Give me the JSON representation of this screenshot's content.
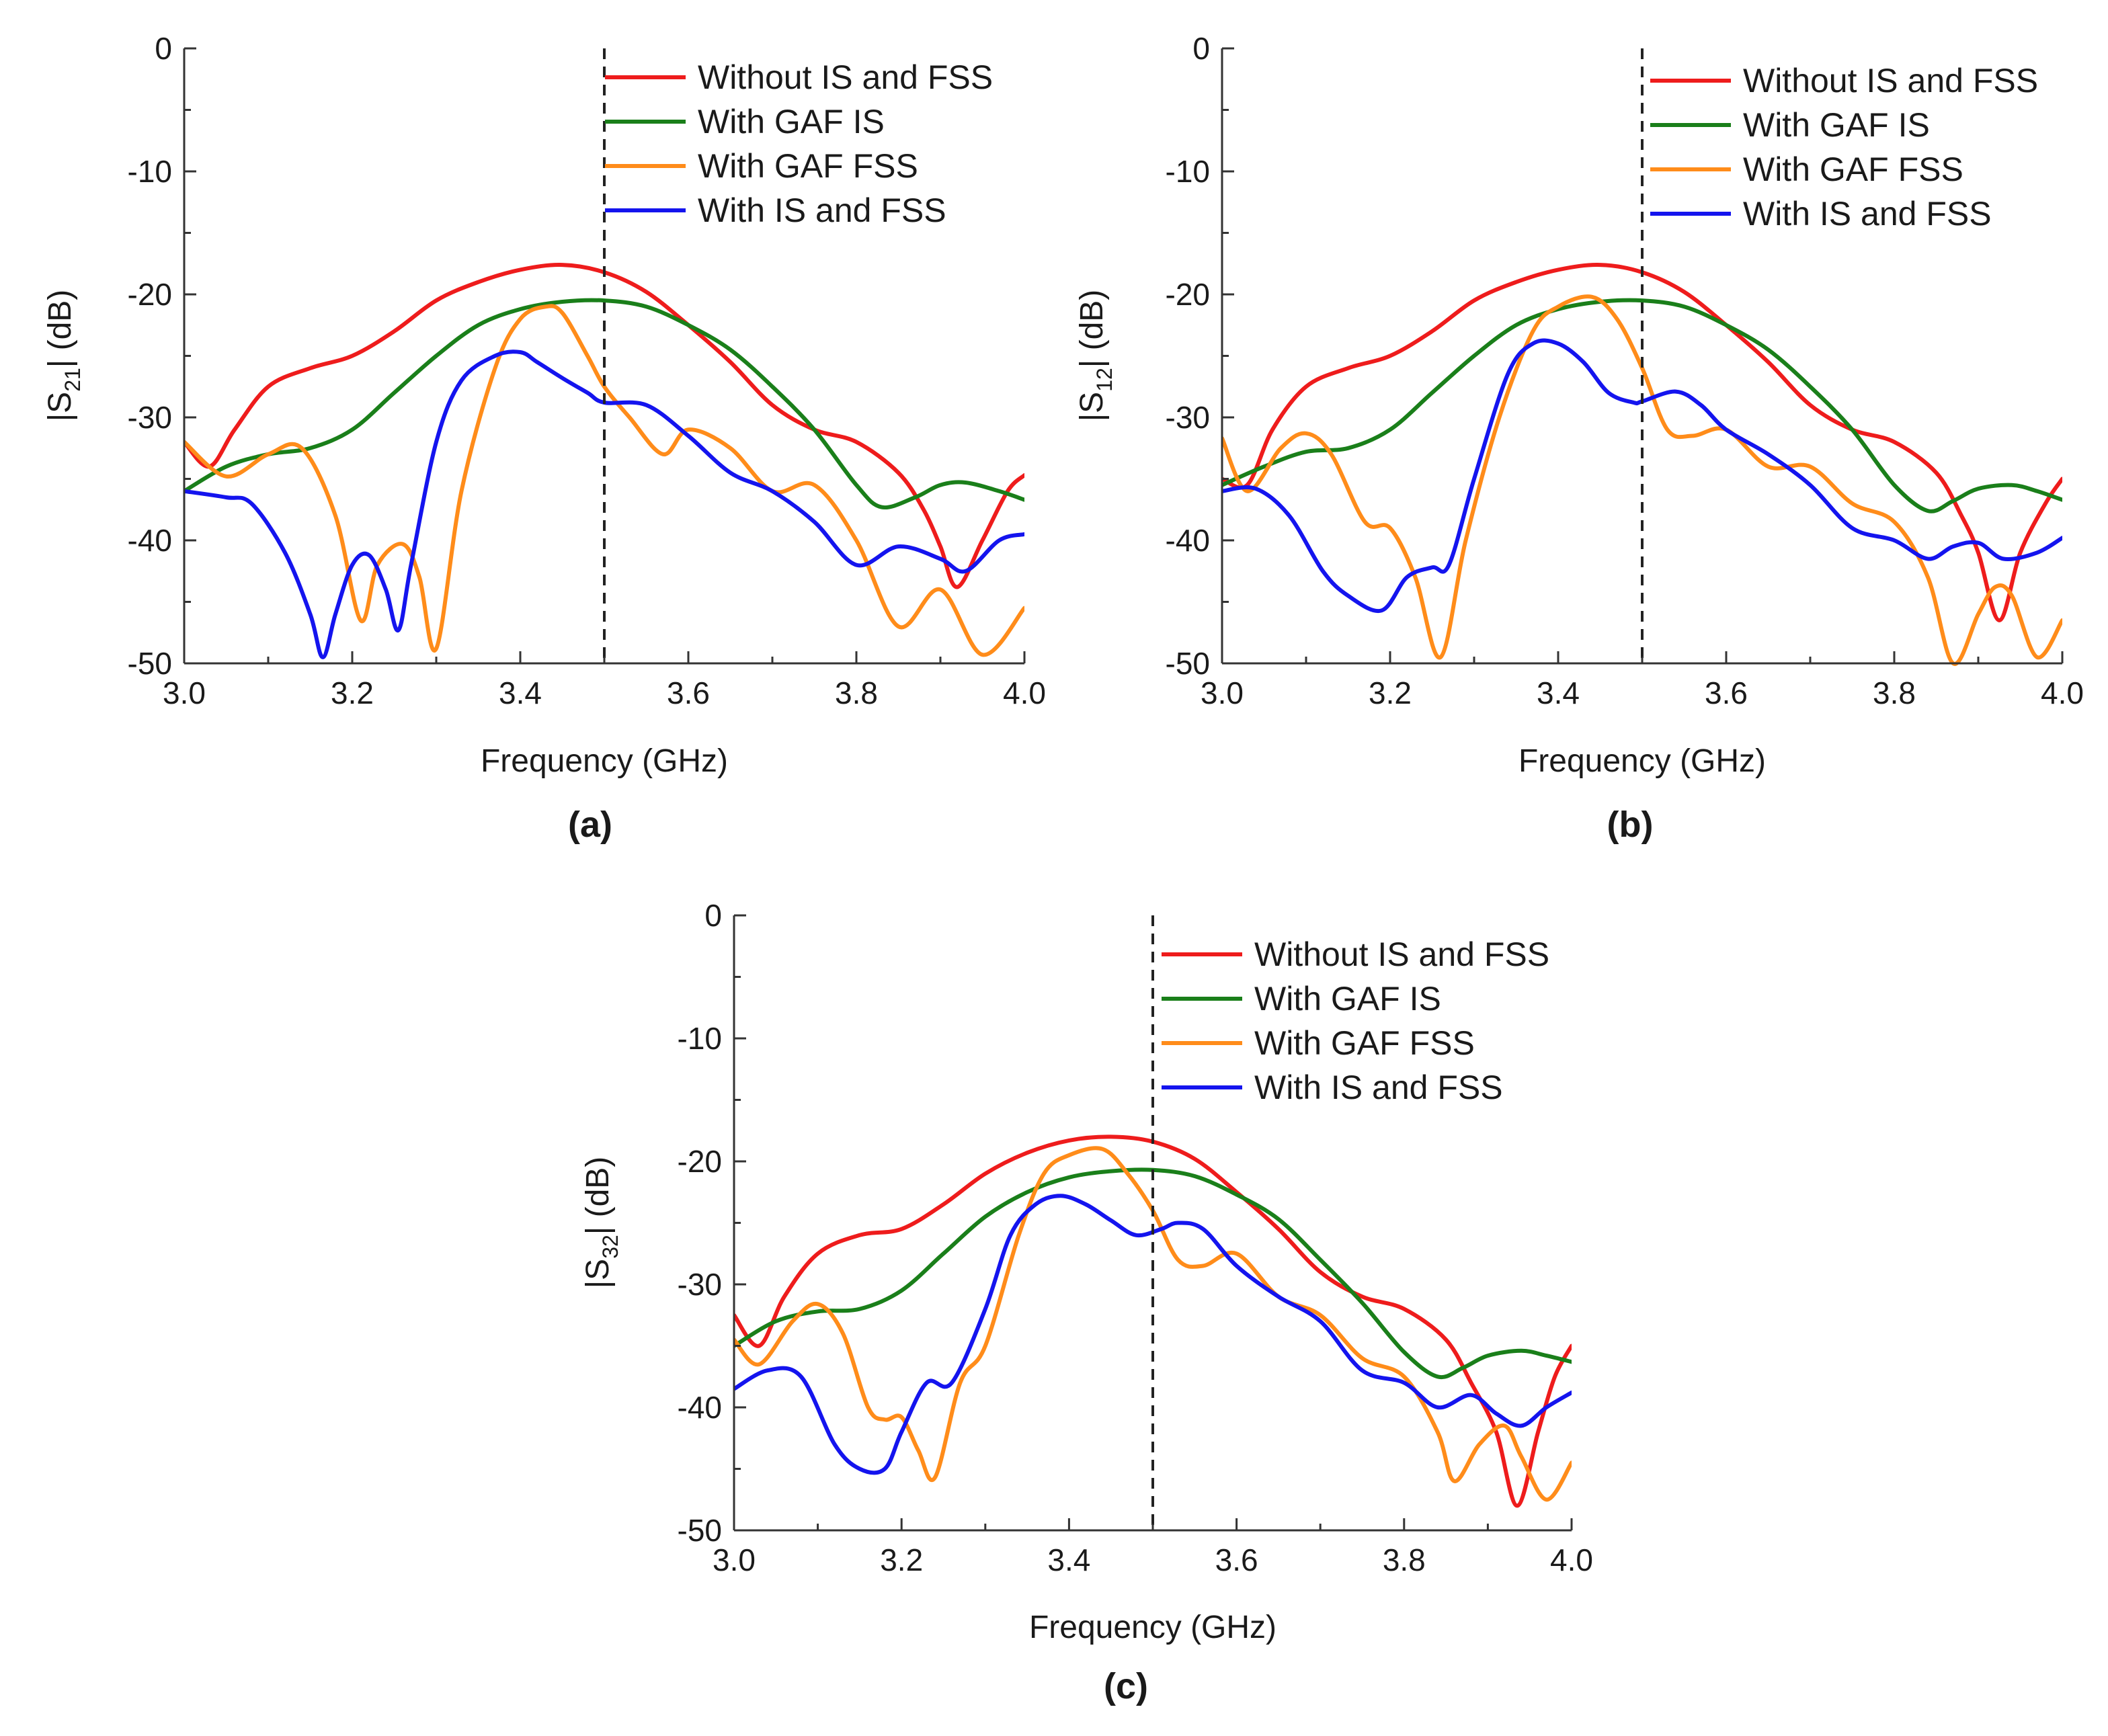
{
  "figure": {
    "legend_entries": [
      "Without IS and FSS",
      "With GAF IS",
      "With GAF FSS",
      "With IS and FSS"
    ],
    "series_colors": [
      "#ee1c1c",
      "#1a7f1a",
      "#ff8c1a",
      "#1414ee"
    ],
    "axis_color": "#333333",
    "marker_color": "#222222"
  },
  "chart_data": [
    {
      "panel": "(a)",
      "type": "line",
      "title": "",
      "xlabel": "Frequency (GHz)",
      "ylabel_prefix": "|S",
      "ylabel_sub": "21",
      "ylabel_suffix": "| (dB)",
      "xlim": [
        3.0,
        4.0
      ],
      "ylim": [
        -50,
        0
      ],
      "xticks": [
        "3.0",
        "3.2",
        "3.4",
        "3.6",
        "3.8",
        "4.0"
      ],
      "yticks": [
        "0",
        "-10",
        "-20",
        "-30",
        "-40",
        "-50"
      ],
      "vline_x": 3.5,
      "legend_position": "top-right",
      "series": [
        {
          "name": "Without IS and FSS",
          "x": [
            3.0,
            3.03,
            3.06,
            3.1,
            3.15,
            3.2,
            3.25,
            3.3,
            3.35,
            3.4,
            3.45,
            3.5,
            3.55,
            3.6,
            3.65,
            3.7,
            3.75,
            3.8,
            3.85,
            3.88,
            3.9,
            3.92,
            3.95,
            3.98,
            4.0
          ],
          "y": [
            -32,
            -34,
            -31,
            -27.5,
            -26,
            -25,
            -23,
            -20.5,
            -19,
            -18,
            -17.6,
            -18.2,
            -19.8,
            -22.5,
            -25.5,
            -29,
            -31,
            -32,
            -34.5,
            -37.5,
            -40.5,
            -43.8,
            -40,
            -36,
            -34.7
          ]
        },
        {
          "name": "With GAF IS",
          "x": [
            3.0,
            3.05,
            3.1,
            3.15,
            3.2,
            3.25,
            3.3,
            3.35,
            3.4,
            3.45,
            3.5,
            3.55,
            3.6,
            3.65,
            3.7,
            3.75,
            3.8,
            3.83,
            3.87,
            3.9,
            3.93,
            3.97,
            4.0
          ],
          "y": [
            -36,
            -34,
            -33,
            -32.5,
            -31,
            -28,
            -25,
            -22.5,
            -21.2,
            -20.6,
            -20.5,
            -21,
            -22.5,
            -24.5,
            -27.5,
            -31,
            -35.5,
            -37.3,
            -36.5,
            -35.5,
            -35.3,
            -36,
            -36.7
          ]
        },
        {
          "name": "With GAF FSS",
          "x": [
            3.0,
            3.05,
            3.1,
            3.14,
            3.18,
            3.21,
            3.23,
            3.26,
            3.28,
            3.3,
            3.33,
            3.37,
            3.4,
            3.43,
            3.45,
            3.48,
            3.5,
            3.53,
            3.57,
            3.6,
            3.65,
            3.7,
            3.75,
            3.8,
            3.85,
            3.9,
            3.95,
            4.0
          ],
          "y": [
            -32,
            -34.8,
            -33,
            -32.5,
            -38,
            -46.5,
            -42,
            -40.3,
            -43,
            -48.8,
            -36,
            -26,
            -22,
            -21,
            -21.5,
            -25,
            -27.5,
            -30,
            -33,
            -31,
            -32.5,
            -36,
            -35.5,
            -40,
            -47,
            -44,
            -49.3,
            -45.5
          ]
        },
        {
          "name": "With IS and FSS",
          "x": [
            3.0,
            3.05,
            3.08,
            3.12,
            3.15,
            3.165,
            3.18,
            3.2,
            3.22,
            3.24,
            3.255,
            3.27,
            3.3,
            3.33,
            3.37,
            3.4,
            3.42,
            3.45,
            3.48,
            3.5,
            3.55,
            3.6,
            3.65,
            3.7,
            3.75,
            3.8,
            3.85,
            3.9,
            3.93,
            3.97,
            4.0
          ],
          "y": [
            -36,
            -36.5,
            -37,
            -41,
            -46,
            -49.5,
            -46,
            -42,
            -41.2,
            -44,
            -47.3,
            -42,
            -32,
            -27,
            -25,
            -24.7,
            -25.5,
            -26.8,
            -28,
            -28.8,
            -29,
            -31.5,
            -34.5,
            -36,
            -38.5,
            -42,
            -40.5,
            -41.5,
            -42.5,
            -40,
            -39.5
          ]
        }
      ]
    },
    {
      "panel": "(b)",
      "type": "line",
      "title": "",
      "xlabel": "Frequency (GHz)",
      "ylabel_prefix": "|S",
      "ylabel_sub": "12",
      "ylabel_suffix": "| (dB)",
      "xlim": [
        3.0,
        4.0
      ],
      "ylim": [
        -50,
        0
      ],
      "xticks": [
        "3.0",
        "3.2",
        "3.4",
        "3.6",
        "3.8",
        "4.0"
      ],
      "yticks": [
        "0",
        "-10",
        "-20",
        "-30",
        "-40",
        "-50"
      ],
      "vline_x": 3.5,
      "legend_position": "top-right",
      "series": [
        {
          "name": "Without IS and FSS",
          "x": [
            3.0,
            3.03,
            3.06,
            3.1,
            3.15,
            3.2,
            3.25,
            3.3,
            3.35,
            3.4,
            3.45,
            3.5,
            3.55,
            3.6,
            3.65,
            3.7,
            3.75,
            3.8,
            3.85,
            3.88,
            3.9,
            3.925,
            3.95,
            3.98,
            4.0
          ],
          "y": [
            -35,
            -35.5,
            -31,
            -27.5,
            -26,
            -25,
            -23,
            -20.5,
            -19,
            -18,
            -17.6,
            -18.2,
            -19.8,
            -22.5,
            -25.5,
            -29,
            -31,
            -32,
            -34.5,
            -38,
            -41,
            -46.5,
            -41,
            -37,
            -35
          ]
        },
        {
          "name": "With GAF IS",
          "x": [
            3.0,
            3.05,
            3.1,
            3.15,
            3.2,
            3.25,
            3.3,
            3.35,
            3.4,
            3.45,
            3.5,
            3.55,
            3.6,
            3.65,
            3.7,
            3.75,
            3.8,
            3.84,
            3.87,
            3.9,
            3.94,
            3.97,
            4.0
          ],
          "y": [
            -35.5,
            -34,
            -32.8,
            -32.5,
            -31,
            -28,
            -25,
            -22.5,
            -21.2,
            -20.6,
            -20.5,
            -21,
            -22.5,
            -24.5,
            -27.5,
            -31,
            -35.5,
            -37.6,
            -36.8,
            -35.8,
            -35.5,
            -36,
            -36.7
          ]
        },
        {
          "name": "With GAF FSS",
          "x": [
            3.0,
            3.03,
            3.07,
            3.1,
            3.13,
            3.17,
            3.2,
            3.23,
            3.26,
            3.29,
            3.33,
            3.37,
            3.4,
            3.44,
            3.47,
            3.5,
            3.53,
            3.56,
            3.6,
            3.65,
            3.7,
            3.75,
            3.8,
            3.84,
            3.87,
            3.9,
            3.92,
            3.94,
            3.97,
            4.0
          ],
          "y": [
            -31.7,
            -36,
            -32.5,
            -31.3,
            -33,
            -38.5,
            -39,
            -43,
            -49.5,
            -40,
            -30,
            -23,
            -21,
            -20.2,
            -22,
            -26,
            -31,
            -31.5,
            -31,
            -34,
            -34,
            -37,
            -38.5,
            -43,
            -50,
            -46,
            -43.8,
            -44.5,
            -49.5,
            -46.5
          ]
        },
        {
          "name": "With IS and FSS",
          "x": [
            3.0,
            3.04,
            3.08,
            3.12,
            3.15,
            3.19,
            3.22,
            3.25,
            3.27,
            3.3,
            3.34,
            3.37,
            3.4,
            3.43,
            3.46,
            3.49,
            3.5,
            3.54,
            3.57,
            3.6,
            3.65,
            3.7,
            3.75,
            3.8,
            3.84,
            3.87,
            3.9,
            3.93,
            3.97,
            4.0
          ],
          "y": [
            -36,
            -35.8,
            -38,
            -42.5,
            -44.5,
            -45.7,
            -43,
            -42.2,
            -42,
            -35,
            -26.5,
            -24,
            -24,
            -25.5,
            -28,
            -28.8,
            -28.7,
            -27.9,
            -29,
            -31,
            -33,
            -35.5,
            -39,
            -40,
            -41.5,
            -40.5,
            -40.2,
            -41.5,
            -41,
            -39.8
          ]
        }
      ]
    },
    {
      "panel": "(c)",
      "type": "line",
      "title": "",
      "xlabel": "Frequency (GHz)",
      "ylabel_prefix": "|S",
      "ylabel_sub": "32",
      "ylabel_suffix": "| (dB)",
      "xlim": [
        3.0,
        4.0
      ],
      "ylim": [
        -50,
        0
      ],
      "xticks": [
        "3.0",
        "3.2",
        "3.4",
        "3.6",
        "3.8",
        "4.0"
      ],
      "yticks": [
        "0",
        "-10",
        "-20",
        "-30",
        "-40",
        "-50"
      ],
      "vline_x": 3.5,
      "legend_position": "top-right",
      "series": [
        {
          "name": "Without IS and FSS",
          "x": [
            3.0,
            3.03,
            3.06,
            3.1,
            3.15,
            3.2,
            3.25,
            3.3,
            3.35,
            3.4,
            3.45,
            3.5,
            3.55,
            3.6,
            3.65,
            3.7,
            3.75,
            3.8,
            3.85,
            3.88,
            3.91,
            3.935,
            3.96,
            3.98,
            4.0
          ],
          "y": [
            -32.5,
            -35,
            -31,
            -27.5,
            -26,
            -25.5,
            -23.5,
            -21,
            -19.3,
            -18.3,
            -18,
            -18.4,
            -19.8,
            -22.5,
            -25.5,
            -29,
            -31,
            -32,
            -34.5,
            -38,
            -42,
            -48,
            -42,
            -37.5,
            -35
          ]
        },
        {
          "name": "With GAF IS",
          "x": [
            3.0,
            3.05,
            3.1,
            3.15,
            3.2,
            3.25,
            3.3,
            3.35,
            3.4,
            3.45,
            3.5,
            3.55,
            3.6,
            3.65,
            3.7,
            3.75,
            3.8,
            3.84,
            3.87,
            3.9,
            3.94,
            3.97,
            4.0
          ],
          "y": [
            -35,
            -33,
            -32.2,
            -32,
            -30.5,
            -27.5,
            -24.5,
            -22.5,
            -21.3,
            -20.8,
            -20.7,
            -21.2,
            -22.7,
            -24.7,
            -28,
            -31.5,
            -35.5,
            -37.5,
            -36.8,
            -35.8,
            -35.4,
            -35.8,
            -36.3
          ]
        },
        {
          "name": "With GAF FSS",
          "x": [
            3.0,
            3.03,
            3.07,
            3.1,
            3.13,
            3.16,
            3.18,
            3.2,
            3.22,
            3.24,
            3.27,
            3.3,
            3.34,
            3.37,
            3.4,
            3.44,
            3.47,
            3.5,
            3.53,
            3.56,
            3.6,
            3.65,
            3.7,
            3.75,
            3.8,
            3.84,
            3.86,
            3.89,
            3.92,
            3.94,
            3.97,
            4.0
          ],
          "y": [
            -34.5,
            -36.5,
            -33,
            -31.6,
            -34,
            -40,
            -41,
            -40.8,
            -43.5,
            -45.7,
            -38,
            -35,
            -26,
            -21,
            -19.5,
            -19,
            -21,
            -24,
            -28,
            -28.5,
            -27.5,
            -31,
            -32.5,
            -36,
            -37.5,
            -42,
            -46,
            -43,
            -41.5,
            -44,
            -47.5,
            -44.5
          ]
        },
        {
          "name": "With IS and FSS",
          "x": [
            3.0,
            3.04,
            3.08,
            3.12,
            3.15,
            3.18,
            3.2,
            3.23,
            3.26,
            3.3,
            3.33,
            3.36,
            3.39,
            3.42,
            3.45,
            3.48,
            3.51,
            3.53,
            3.56,
            3.6,
            3.65,
            3.7,
            3.75,
            3.8,
            3.84,
            3.88,
            3.91,
            3.94,
            3.97,
            4.0
          ],
          "y": [
            -38.5,
            -37,
            -37.5,
            -43,
            -45,
            -45,
            -42,
            -38,
            -38,
            -32,
            -26,
            -23.5,
            -22.8,
            -23.5,
            -24.8,
            -26,
            -25.5,
            -25,
            -25.5,
            -28.5,
            -31,
            -33,
            -37,
            -38,
            -40,
            -39,
            -40.5,
            -41.5,
            -40,
            -38.8
          ]
        }
      ]
    }
  ],
  "panel_labels": [
    "(a)",
    "(b)",
    "(c)"
  ]
}
